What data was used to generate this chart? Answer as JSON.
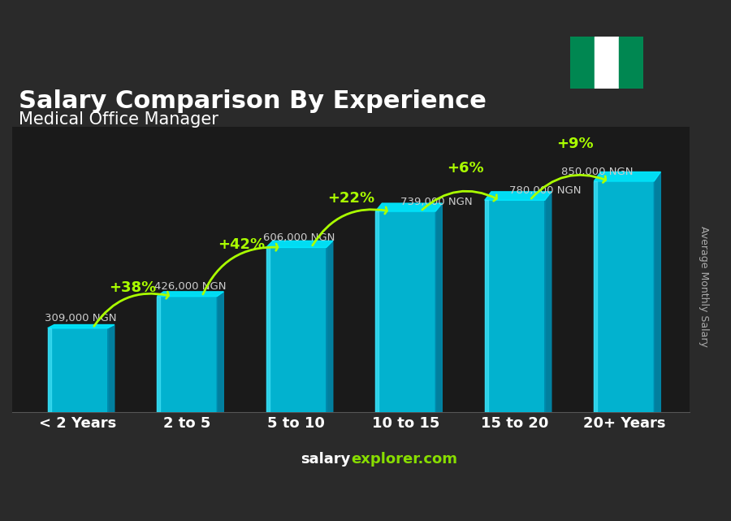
{
  "title": "Salary Comparison By Experience",
  "subtitle": "Medical Office Manager",
  "categories": [
    "< 2 Years",
    "2 to 5",
    "5 to 10",
    "10 to 15",
    "15 to 20",
    "20+ Years"
  ],
  "values": [
    309000,
    426000,
    606000,
    739000,
    780000,
    850000
  ],
  "labels": [
    "309,000 NGN",
    "426,000 NGN",
    "606,000 NGN",
    "739,000 NGN",
    "780,000 NGN",
    "850,000 NGN"
  ],
  "pct_labels": [
    "+38%",
    "+42%",
    "+22%",
    "+6%",
    "+9%"
  ],
  "bar_color_top": "#00d4f5",
  "bar_color_mid": "#00aacc",
  "bar_color_bot": "#007fa0",
  "background_color": "#2a2a2a",
  "title_color": "#ffffff",
  "subtitle_color": "#ffffff",
  "label_color": "#cccccc",
  "pct_color": "#aaff00",
  "arrow_color": "#aaff00",
  "xlabel_color": "#ffffff",
  "watermark": "salaryexplorer.com",
  "ylabel": "Average Monthly Salary",
  "nigeria_flag_green": "#008751",
  "nigeria_flag_white": "#ffffff",
  "ylim": [
    0,
    1050000
  ]
}
